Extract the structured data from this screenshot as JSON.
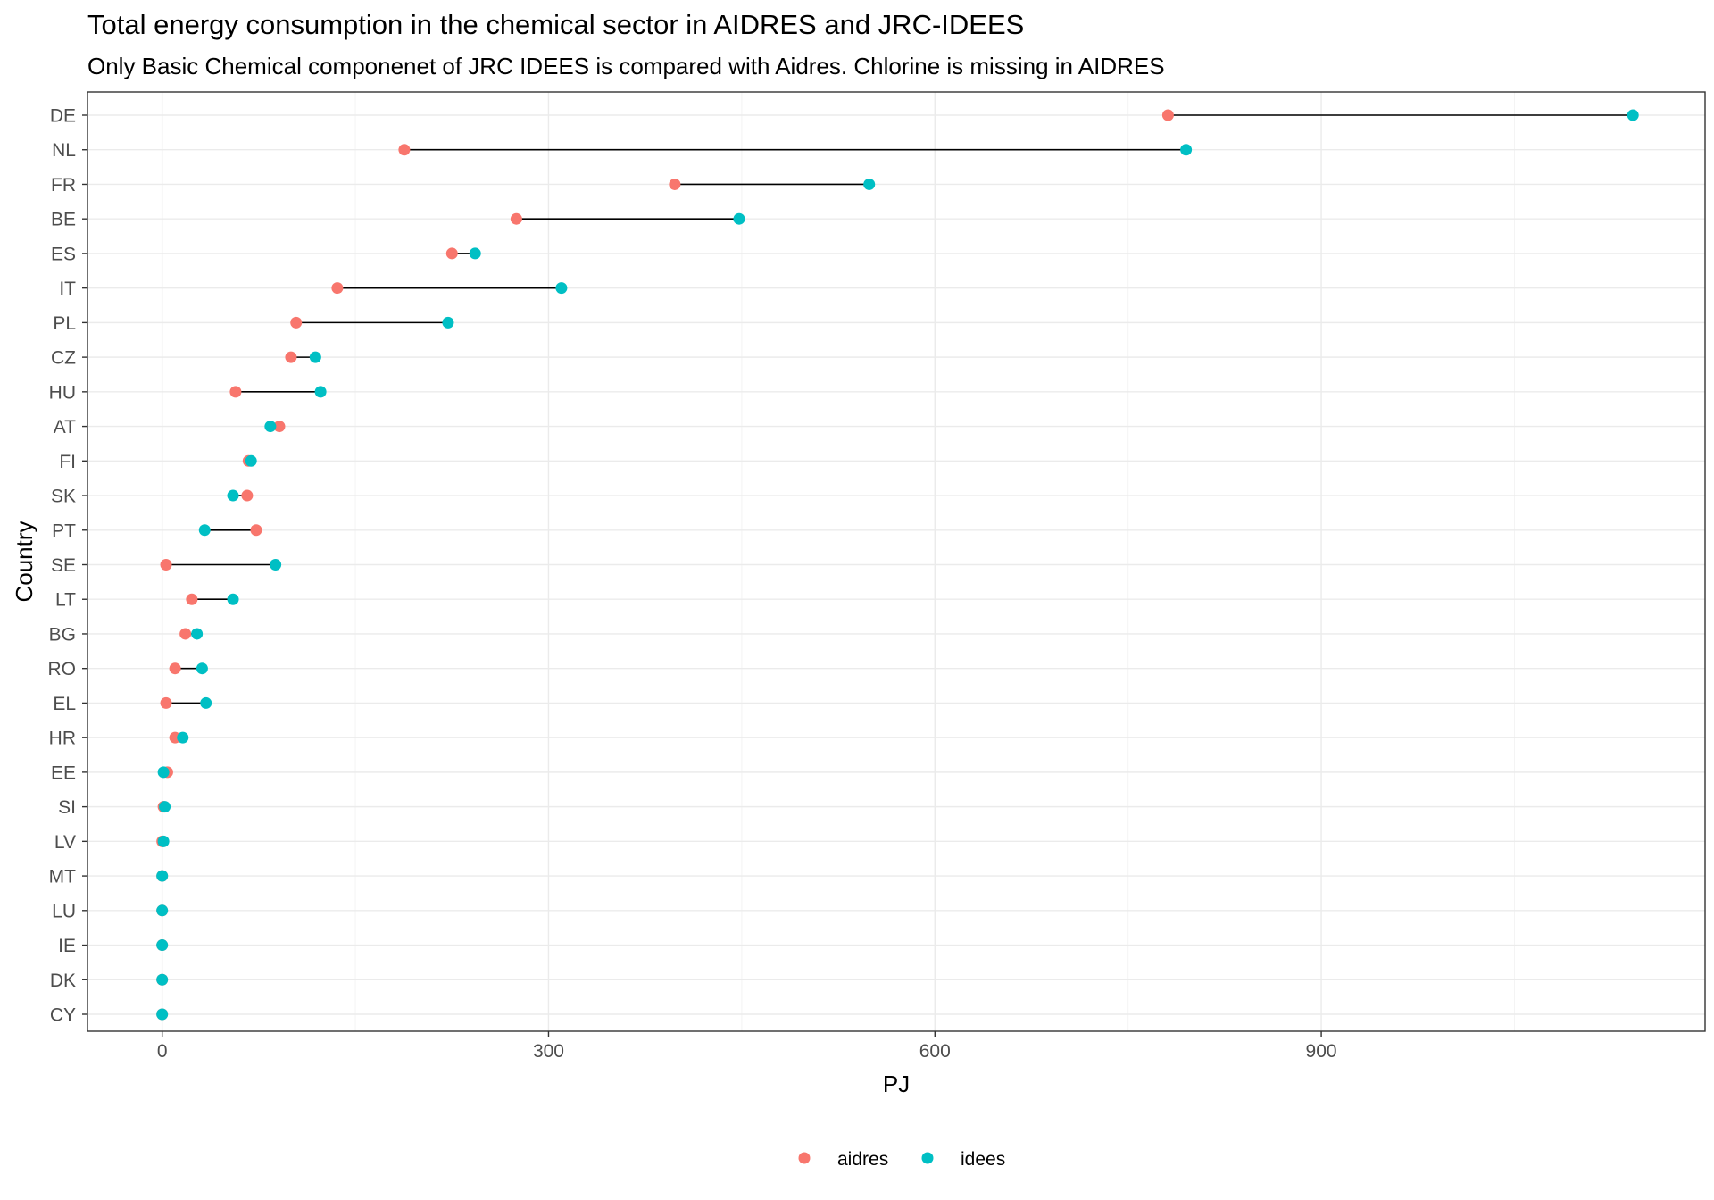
{
  "chart_data": {
    "type": "dumbbell",
    "title": "Total energy consumption in the chemical sector in AIDRES and JRC-IDEES",
    "subtitle": "Only Basic Chemical componenet of JRC IDEES is compared with Aidres. Chlorine is missing in AIDRES",
    "xlabel": "PJ",
    "ylabel": "Country",
    "xlim": [
      -58,
      1198
    ],
    "x_ticks": [
      0,
      300,
      600,
      900
    ],
    "x_tick_labels": [
      "0",
      "300",
      "600",
      "900"
    ],
    "grid": true,
    "legend_position": "bottom",
    "categories": [
      "DE",
      "NL",
      "FR",
      "BE",
      "ES",
      "IT",
      "PL",
      "CZ",
      "HU",
      "AT",
      "FI",
      "SK",
      "PT",
      "SE",
      "LT",
      "BG",
      "RO",
      "EL",
      "HR",
      "EE",
      "SI",
      "LV",
      "MT",
      "LU",
      "IE",
      "DK",
      "CY"
    ],
    "series": [
      {
        "name": "aidres",
        "color": "#F8766D",
        "values": [
          781,
          188,
          398,
          275,
          225,
          136,
          104,
          100,
          57,
          91,
          67,
          66,
          73,
          3,
          23,
          18,
          10,
          3,
          10,
          4,
          1,
          0,
          0,
          0,
          0,
          0,
          0
        ]
      },
      {
        "name": "idees",
        "color": "#00BFC4",
        "values": [
          1142,
          795,
          549,
          448,
          243,
          310,
          222,
          119,
          123,
          84,
          69,
          55,
          33,
          88,
          55,
          27,
          31,
          34,
          16,
          1,
          2,
          1,
          0,
          0,
          0,
          0,
          0
        ]
      }
    ],
    "segment_color": "#000000"
  }
}
